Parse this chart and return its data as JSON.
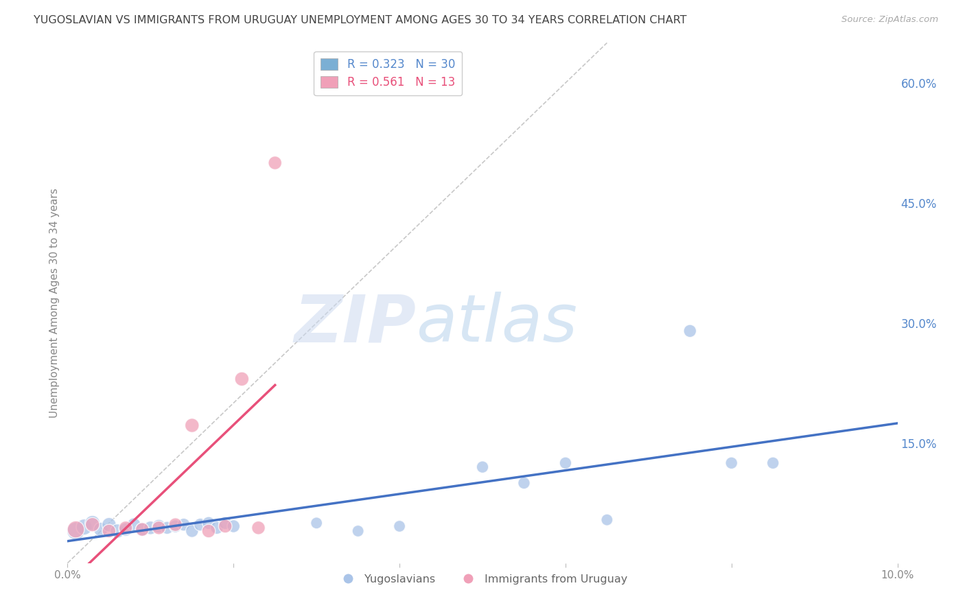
{
  "title": "YUGOSLAVIAN VS IMMIGRANTS FROM URUGUAY UNEMPLOYMENT AMONG AGES 30 TO 34 YEARS CORRELATION CHART",
  "source": "Source: ZipAtlas.com",
  "ylabel": "Unemployment Among Ages 30 to 34 years",
  "watermark_zip": "ZIP",
  "watermark_atlas": "atlas",
  "xlim": [
    0.0,
    0.1
  ],
  "ylim": [
    0.0,
    0.65
  ],
  "x_ticks": [
    0.0,
    0.02,
    0.04,
    0.06,
    0.08,
    0.1
  ],
  "x_tick_labels": [
    "0.0%",
    "",
    "",
    "",
    "",
    "10.0%"
  ],
  "y_ticks_right": [
    0.15,
    0.3,
    0.45,
    0.6
  ],
  "y_tick_labels_right": [
    "15.0%",
    "30.0%",
    "45.0%",
    "60.0%"
  ],
  "series_blue": {
    "name": "Yugoslavians",
    "marker_color": "#aac4e8",
    "line_color": "#4472c4",
    "x": [
      0.001,
      0.002,
      0.003,
      0.004,
      0.005,
      0.006,
      0.007,
      0.008,
      0.009,
      0.01,
      0.011,
      0.012,
      0.013,
      0.014,
      0.015,
      0.016,
      0.017,
      0.018,
      0.019,
      0.02,
      0.03,
      0.035,
      0.04,
      0.05,
      0.055,
      0.06,
      0.065,
      0.075,
      0.08,
      0.085
    ],
    "y": [
      0.04,
      0.045,
      0.05,
      0.042,
      0.048,
      0.04,
      0.042,
      0.048,
      0.042,
      0.044,
      0.046,
      0.044,
      0.046,
      0.048,
      0.04,
      0.048,
      0.05,
      0.044,
      0.05,
      0.046,
      0.05,
      0.04,
      0.046,
      0.12,
      0.1,
      0.125,
      0.054,
      0.29,
      0.125,
      0.125
    ],
    "sizes": [
      350,
      280,
      250,
      220,
      220,
      220,
      200,
      200,
      200,
      200,
      200,
      180,
      180,
      180,
      180,
      180,
      180,
      180,
      180,
      180,
      150,
      150,
      150,
      160,
      160,
      160,
      150,
      180,
      160,
      160
    ]
  },
  "series_pink": {
    "name": "Immigrants from Uruguay",
    "marker_color": "#f0a0b8",
    "line_color": "#e8507a",
    "x": [
      0.001,
      0.003,
      0.005,
      0.007,
      0.009,
      0.011,
      0.013,
      0.015,
      0.017,
      0.019,
      0.021,
      0.023,
      0.025
    ],
    "y": [
      0.042,
      0.048,
      0.04,
      0.044,
      0.042,
      0.044,
      0.048,
      0.172,
      0.04,
      0.046,
      0.23,
      0.044,
      0.5
    ],
    "sizes": [
      320,
      220,
      200,
      200,
      200,
      200,
      200,
      220,
      200,
      200,
      220,
      200,
      200
    ]
  },
  "diagonal_line": {
    "x1": 0.0,
    "y1": 0.0,
    "x2": 0.065,
    "y2": 0.65,
    "color": "#c8c8c8",
    "linestyle": "--",
    "linewidth": 1.2
  },
  "background_color": "#ffffff",
  "grid_color": "#dddddd",
  "title_color": "#444444",
  "axis_label_color": "#888888",
  "right_tick_color": "#5588cc",
  "legend_R1": "0.323",
  "legend_N1": "30",
  "legend_R2": "0.561",
  "legend_N2": "13",
  "legend_color1": "#7bafd4",
  "legend_color2": "#f0a0b8",
  "legend_text_color1": "#5588cc",
  "legend_text_color2": "#e8507a"
}
